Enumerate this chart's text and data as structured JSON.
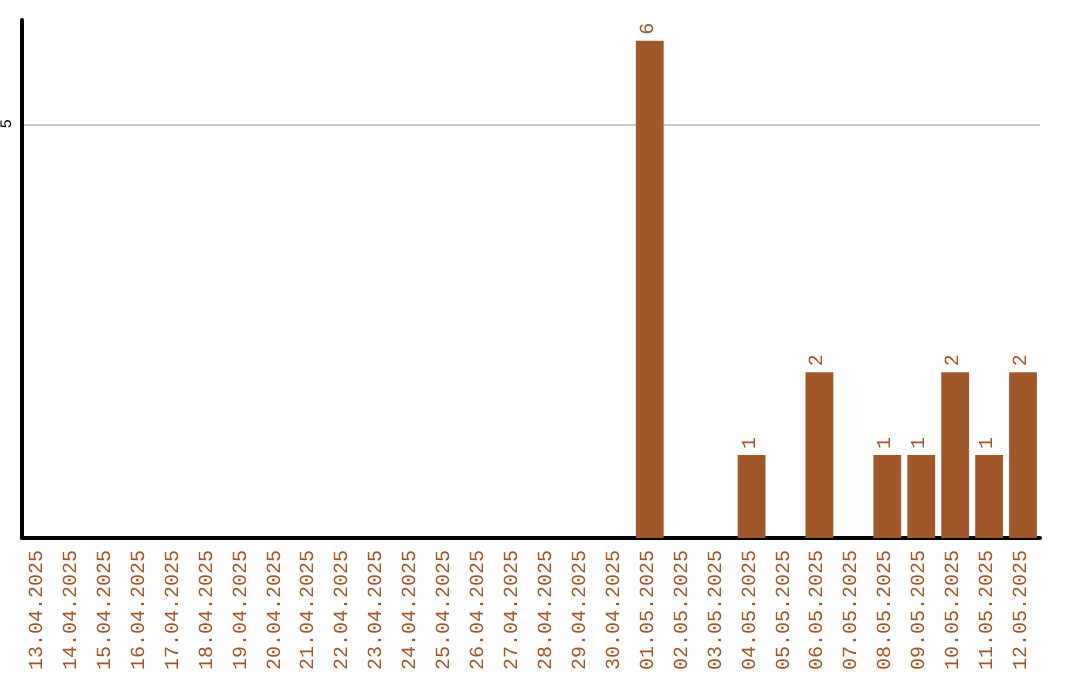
{
  "chart_data": {
    "type": "bar",
    "categories": [
      "13.04.2025",
      "14.04.2025",
      "15.04.2025",
      "16.04.2025",
      "17.04.2025",
      "18.04.2025",
      "19.04.2025",
      "20.04.2025",
      "21.04.2025",
      "22.04.2025",
      "23.04.2025",
      "24.04.2025",
      "25.04.2025",
      "26.04.2025",
      "27.04.2025",
      "28.04.2025",
      "29.04.2025",
      "30.04.2025",
      "01.05.2025",
      "02.05.2025",
      "03.05.2025",
      "04.05.2025",
      "05.05.2025",
      "06.05.2025",
      "07.05.2025",
      "08.05.2025",
      "09.05.2025",
      "10.05.2025",
      "11.05.2025",
      "12.05.2025"
    ],
    "values": [
      null,
      null,
      null,
      null,
      null,
      null,
      null,
      null,
      null,
      null,
      null,
      null,
      null,
      null,
      null,
      null,
      null,
      null,
      6,
      null,
      null,
      1,
      null,
      2,
      null,
      1,
      1,
      2,
      1,
      2
    ],
    "data_labels": true,
    "color": "#a0572a",
    "ylim": [
      0,
      6.25
    ],
    "yticks": [
      5
    ],
    "grid": "y"
  }
}
